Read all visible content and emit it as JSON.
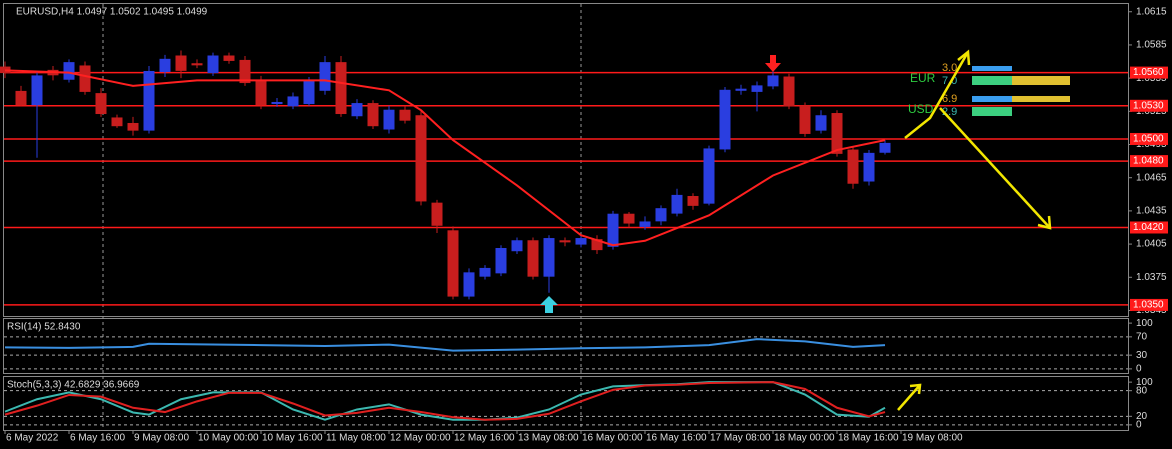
{
  "chart_data": [
    {
      "type": "candlestick",
      "title": "EURUSD,H4  1.0497 1.0502 1.0495 1.0499",
      "categories": [
        "6 May 2022",
        null,
        null,
        null,
        "6 May 16:00",
        null,
        null,
        null,
        "9 May 08:00",
        null,
        null,
        null,
        "10 May 00:00",
        null,
        null,
        null,
        "10 May 16:00",
        null,
        null,
        null,
        "11 May 08:00",
        null,
        null,
        null,
        "12 May 00:00",
        null,
        null,
        null,
        "12 May 16:00",
        null,
        null,
        null,
        "13 May 08:00",
        null,
        null,
        null,
        "16 May 00:00",
        null,
        null,
        null,
        "16 May 16:00",
        null,
        null,
        null,
        "17 May 08:00",
        null,
        null,
        null,
        "18 May 00:00",
        null,
        null,
        null,
        "18 May 16:00",
        null,
        null,
        null,
        "19 May 08:00"
      ],
      "open": [
        1.0565,
        1.0543,
        1.0531,
        1.0562,
        1.0554,
        1.0566,
        1.0541,
        1.0519,
        1.0514,
        1.0508,
        1.0561,
        1.0575,
        1.0568,
        1.056,
        1.0575,
        1.0571,
        1.0552,
        1.0532,
        1.053,
        1.0532,
        1.0544,
        1.0569,
        1.0521,
        1.0532,
        1.0509,
        1.0526,
        1.0521,
        1.0442,
        1.0417,
        1.0358,
        1.0376,
        1.0379,
        1.0399,
        1.0408,
        1.0376,
        1.0408,
        1.0405,
        1.0409,
        1.0403,
        1.0432,
        1.0421,
        1.0426,
        1.0433,
        1.0448,
        1.0442,
        1.0491,
        1.0544,
        1.0543,
        1.0548,
        1.0556,
        1.053,
        1.0508,
        1.0523,
        1.049,
        1.0462,
        1.0488,
        null
      ],
      "high": [
        1.057,
        1.0548,
        1.056,
        1.0566,
        1.0572,
        1.057,
        1.0546,
        1.0522,
        1.052,
        1.0566,
        1.0576,
        1.058,
        1.0572,
        1.0578,
        1.0578,
        1.0575,
        1.0557,
        1.0537,
        1.0542,
        1.0556,
        1.0575,
        1.0575,
        1.0536,
        1.0535,
        1.053,
        1.053,
        1.0525,
        1.0445,
        1.0421,
        1.0383,
        1.0386,
        1.0404,
        1.0411,
        1.0411,
        1.0413,
        1.0411,
        1.0414,
        1.0413,
        1.0435,
        1.0434,
        1.043,
        1.044,
        1.0455,
        1.0451,
        1.0494,
        1.0547,
        1.0549,
        1.0552,
        1.0562,
        1.0559,
        1.0533,
        1.0526,
        1.0526,
        1.0493,
        1.049,
        1.0499,
        null
      ],
      "low": [
        1.0555,
        1.053,
        1.0483,
        1.0553,
        1.0551,
        1.054,
        1.052,
        1.051,
        1.0503,
        1.0505,
        1.0556,
        1.0555,
        1.0564,
        1.0557,
        1.0568,
        1.0548,
        1.0527,
        1.0529,
        1.0527,
        1.053,
        1.054,
        1.052,
        1.0518,
        1.0509,
        1.0505,
        1.0514,
        1.044,
        1.0415,
        1.0355,
        1.0355,
        1.0373,
        1.0376,
        1.0396,
        1.0373,
        1.0361,
        1.0403,
        1.0402,
        1.0396,
        1.04,
        1.042,
        1.0418,
        1.0422,
        1.043,
        1.0436,
        1.044,
        1.0488,
        1.054,
        1.0525,
        1.0545,
        1.0527,
        1.0502,
        1.0505,
        1.0484,
        1.0455,
        1.0458,
        1.0486,
        null
      ],
      "close": [
        1.056,
        1.0531,
        1.0557,
        1.0558,
        1.0569,
        1.0543,
        1.0523,
        1.0512,
        1.0508,
        1.0561,
        1.0572,
        1.0562,
        1.0567,
        1.0575,
        1.0571,
        1.0551,
        1.0531,
        1.0533,
        1.0538,
        1.0553,
        1.0569,
        1.0523,
        1.0532,
        1.0512,
        1.0526,
        1.0517,
        1.0444,
        1.0422,
        1.0358,
        1.0379,
        1.0383,
        1.0401,
        1.0408,
        1.0376,
        1.041,
        1.0407,
        1.041,
        1.04,
        1.0432,
        1.0424,
        1.0425,
        1.0437,
        1.0449,
        1.044,
        1.0491,
        1.0544,
        1.0545,
        1.0548,
        1.0557,
        1.053,
        1.0505,
        1.0521,
        1.0487,
        1.046,
        1.0487,
        1.0496,
        null
      ],
      "up_color": "#2a3ee0",
      "down_color": "#c81e1e",
      "series": [
        {
          "color": "#ff2020",
          "x": [
            0,
            4,
            8,
            12,
            16,
            20,
            24,
            26,
            28,
            32,
            36,
            38,
            40,
            44,
            48,
            52,
            55
          ],
          "values": [
            1.0562,
            1.056,
            1.0548,
            1.0553,
            1.0553,
            1.0553,
            1.0544,
            1.0526,
            1.0499,
            1.0458,
            1.0413,
            1.0404,
            1.0408,
            1.0431,
            1.0467,
            1.049,
            1.0499
          ]
        }
      ],
      "levels": [
        {
          "value": 1.056,
          "label": "1.0560"
        },
        {
          "value": 1.053,
          "label": "1.0530"
        },
        {
          "value": 1.05,
          "label": "1.0500"
        },
        {
          "value": 1.048,
          "label": "1.0480"
        },
        {
          "value": 1.042,
          "label": "1.0420"
        },
        {
          "value": 1.035,
          "label": "1.0350"
        }
      ],
      "level_color": "#ff1a1a",
      "ylim": [
        1.034,
        1.0622
      ],
      "yticks": [
        1.0615,
        1.0585,
        1.0555,
        1.0525,
        1.0495,
        1.0465,
        1.0435,
        1.0405,
        1.0375,
        1.0345
      ]
    },
    {
      "type": "line",
      "title": "RSI(14) 52.8430",
      "ylim": [
        -9,
        109
      ],
      "yticks": [
        100,
        70,
        30,
        0
      ],
      "series": [
        {
          "color": "#3a8fe0",
          "x": [
            0,
            4,
            8,
            9,
            16,
            20,
            24,
            28,
            32,
            36,
            40,
            44,
            47,
            50,
            53,
            55
          ],
          "values": [
            47,
            46,
            48,
            55,
            52,
            50,
            53,
            40,
            42,
            45,
            47,
            52,
            65,
            60,
            48,
            52
          ]
        }
      ]
    },
    {
      "type": "line",
      "title": "Stoch(5,3,3) 42.6829 36.9669",
      "ylim": [
        -12,
        112
      ],
      "yticks": [
        100,
        80,
        20,
        0
      ],
      "series": [
        {
          "color": "#3cb8b0",
          "x": [
            0,
            2,
            4,
            6,
            8,
            9,
            11,
            13,
            16,
            18,
            20,
            22,
            24,
            26,
            28,
            30,
            32,
            34,
            36,
            38,
            40,
            42,
            44,
            48,
            50,
            52,
            54,
            55
          ],
          "values": [
            31,
            60,
            76,
            60,
            29,
            24,
            60,
            76,
            76,
            36,
            12,
            36,
            48,
            24,
            12,
            12,
            17,
            36,
            71,
            90,
            93,
            95,
            100,
            100,
            71,
            24,
            19,
            40
          ]
        },
        {
          "color": "#e02020",
          "x": [
            0,
            2,
            4,
            6,
            8,
            10,
            12,
            14,
            16,
            18,
            20,
            22,
            24,
            26,
            28,
            30,
            32,
            34,
            36,
            38,
            40,
            42,
            44,
            48,
            50,
            52,
            54,
            55
          ],
          "values": [
            24,
            45,
            70,
            66,
            40,
            30,
            55,
            75,
            75,
            50,
            22,
            28,
            40,
            30,
            18,
            12,
            14,
            26,
            55,
            82,
            92,
            94,
            98,
            100,
            84,
            40,
            20,
            30
          ]
        }
      ]
    }
  ],
  "widget": {
    "rows": [
      {
        "currency": "EUR",
        "values": [
          "3.0",
          "7.0"
        ]
      },
      {
        "currency": "USD",
        "values": [
          "6.9",
          "2.9"
        ]
      }
    ]
  }
}
